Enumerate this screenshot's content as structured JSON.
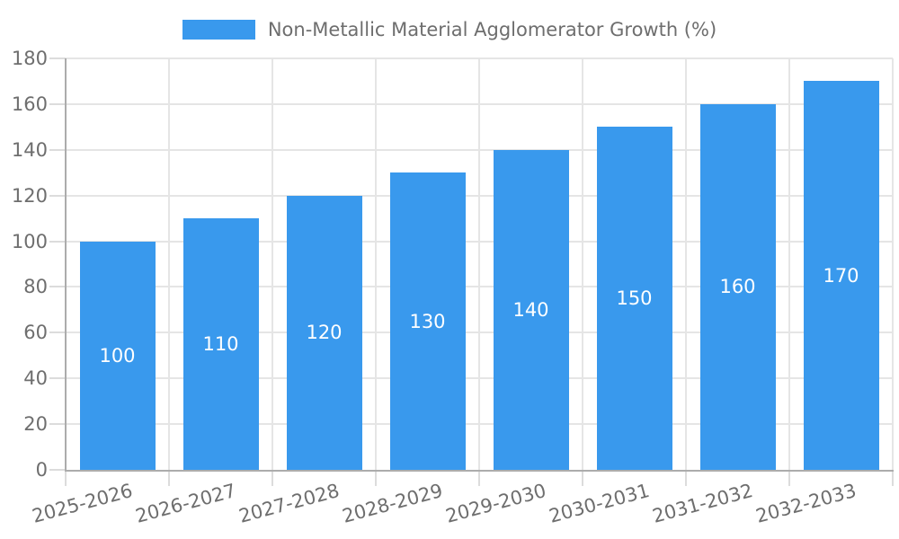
{
  "chart_data": {
    "type": "bar",
    "title": "Non-Metallic Material Agglomerator Growth (%)",
    "categories": [
      "2025-2026",
      "2026-2027",
      "2027-2028",
      "2028-2029",
      "2029-2030",
      "2030-2031",
      "2031-2032",
      "2032-2033"
    ],
    "values": [
      100,
      110,
      120,
      130,
      140,
      150,
      160,
      170
    ],
    "xlabel": "",
    "ylabel": "",
    "ylim": [
      0,
      180
    ],
    "yticks": [
      0,
      20,
      40,
      60,
      80,
      100,
      120,
      140,
      160,
      180
    ],
    "grid": true,
    "legend_position": "top-center",
    "bar_value_label_position": "inside-center",
    "colors": {
      "bar": "#3999ED",
      "axis_line": "#ACACAC",
      "grid_line": "#E5E5E5",
      "tick_mark": "#DCDCDC",
      "axis_text": "#6E6E6E",
      "bar_label_text": "#FFFFFF",
      "background": "#FFFFFF"
    }
  }
}
